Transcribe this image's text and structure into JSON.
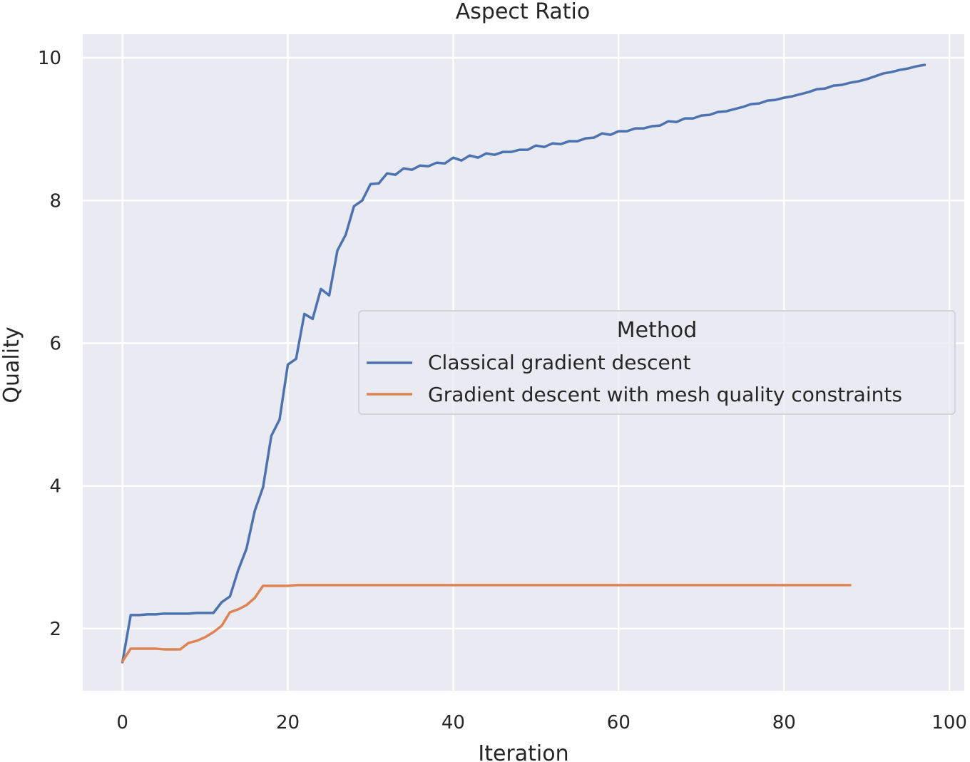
{
  "chart_data": {
    "type": "line",
    "title": "Aspect Ratio",
    "xlabel": "Iteration",
    "ylabel": "Quality",
    "xlim": [
      -4.8,
      101.8
    ],
    "ylim": [
      1.13,
      10.33
    ],
    "xticks": [
      0,
      20,
      40,
      60,
      80,
      100
    ],
    "yticks": [
      2,
      4,
      6,
      8,
      10
    ],
    "grid": true,
    "legend": {
      "title": "Method",
      "placement": "center-right"
    },
    "series": [
      {
        "name": "Classical gradient descent",
        "color": "#4c72b0",
        "x": [
          0,
          1,
          2,
          3,
          4,
          5,
          6,
          7,
          8,
          9,
          10,
          11,
          12,
          13,
          14,
          15,
          16,
          17,
          18,
          19,
          20,
          21,
          22,
          23,
          24,
          25,
          26,
          27,
          28,
          29,
          30,
          31,
          32,
          33,
          34,
          35,
          36,
          37,
          38,
          39,
          40,
          41,
          42,
          43,
          44,
          45,
          46,
          47,
          48,
          49,
          50,
          51,
          52,
          53,
          54,
          55,
          56,
          57,
          58,
          59,
          60,
          61,
          62,
          63,
          64,
          65,
          66,
          67,
          68,
          69,
          70,
          71,
          72,
          73,
          74,
          75,
          76,
          77,
          78,
          79,
          80,
          81,
          82,
          83,
          84,
          85,
          86,
          87,
          88,
          89,
          90,
          91,
          92,
          93,
          94,
          95,
          96,
          97
        ],
        "y": [
          1.53,
          2.19,
          2.19,
          2.2,
          2.2,
          2.21,
          2.21,
          2.21,
          2.21,
          2.22,
          2.22,
          2.22,
          2.37,
          2.45,
          2.82,
          3.12,
          3.65,
          3.98,
          4.7,
          4.93,
          5.7,
          5.78,
          6.41,
          6.34,
          6.76,
          6.67,
          7.3,
          7.52,
          7.92,
          8.0,
          8.23,
          8.24,
          8.38,
          8.36,
          8.45,
          8.43,
          8.49,
          8.48,
          8.53,
          8.52,
          8.6,
          8.56,
          8.63,
          8.6,
          8.66,
          8.64,
          8.68,
          8.68,
          8.71,
          8.71,
          8.77,
          8.75,
          8.8,
          8.79,
          8.83,
          8.83,
          8.87,
          8.88,
          8.94,
          8.92,
          8.97,
          8.97,
          9.01,
          9.01,
          9.04,
          9.05,
          9.11,
          9.1,
          9.15,
          9.15,
          9.19,
          9.2,
          9.24,
          9.25,
          9.28,
          9.31,
          9.35,
          9.36,
          9.4,
          9.41,
          9.44,
          9.46,
          9.49,
          9.52,
          9.56,
          9.57,
          9.61,
          9.62,
          9.65,
          9.67,
          9.7,
          9.74,
          9.78,
          9.8,
          9.83,
          9.85,
          9.88,
          9.9
        ]
      },
      {
        "name": "Gradient descent with mesh quality constraints",
        "color": "#dd8452",
        "x": [
          0,
          1,
          2,
          3,
          4,
          5,
          6,
          7,
          8,
          9,
          10,
          11,
          12,
          13,
          14,
          15,
          16,
          17,
          18,
          19,
          20,
          21,
          22,
          23,
          24,
          25,
          26,
          27,
          28,
          29,
          30,
          31,
          32,
          33,
          34,
          35,
          36,
          37,
          38,
          39,
          40,
          41,
          42,
          43,
          44,
          45,
          46,
          47,
          48,
          49,
          50,
          51,
          52,
          53,
          54,
          55,
          56,
          57,
          58,
          59,
          60,
          61,
          62,
          63,
          64,
          65,
          66,
          67,
          68,
          69,
          70,
          71,
          72,
          73,
          74,
          75,
          76,
          77,
          78,
          79,
          80,
          81,
          82,
          83,
          84,
          85,
          86,
          87,
          88
        ],
        "y": [
          1.54,
          1.72,
          1.72,
          1.72,
          1.72,
          1.71,
          1.71,
          1.71,
          1.8,
          1.83,
          1.88,
          1.95,
          2.04,
          2.23,
          2.27,
          2.33,
          2.43,
          2.6,
          2.6,
          2.6,
          2.6,
          2.61,
          2.61,
          2.61,
          2.61,
          2.61,
          2.61,
          2.61,
          2.61,
          2.61,
          2.61,
          2.61,
          2.61,
          2.61,
          2.61,
          2.61,
          2.61,
          2.61,
          2.61,
          2.61,
          2.61,
          2.61,
          2.61,
          2.61,
          2.61,
          2.61,
          2.61,
          2.61,
          2.61,
          2.61,
          2.61,
          2.61,
          2.61,
          2.61,
          2.61,
          2.61,
          2.61,
          2.61,
          2.61,
          2.61,
          2.61,
          2.61,
          2.61,
          2.61,
          2.61,
          2.61,
          2.61,
          2.61,
          2.61,
          2.61,
          2.61,
          2.61,
          2.61,
          2.61,
          2.61,
          2.61,
          2.61,
          2.61,
          2.61,
          2.61,
          2.61,
          2.61,
          2.61,
          2.61,
          2.61,
          2.61,
          2.61,
          2.61,
          2.61
        ]
      }
    ]
  },
  "style": {
    "plot_background": "#eaeaf2",
    "grid_color": "#ffffff"
  }
}
